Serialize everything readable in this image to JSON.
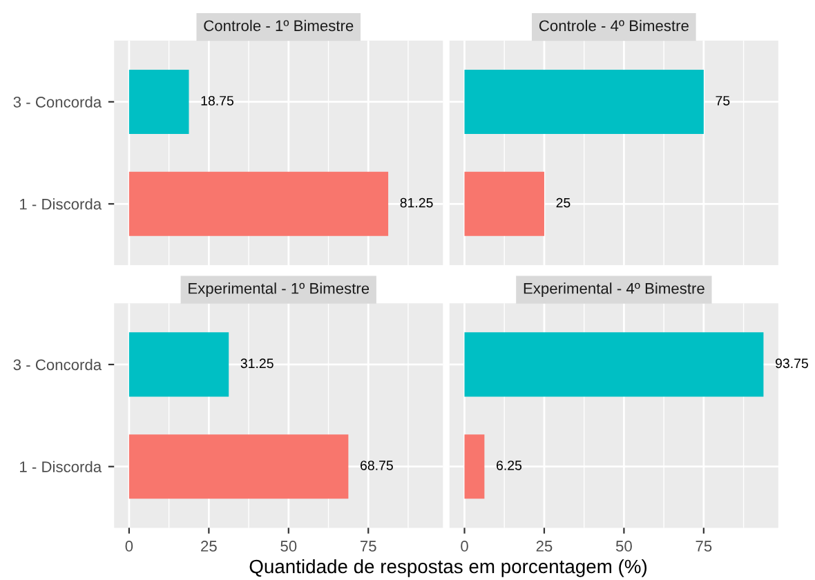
{
  "chart_data": [
    {
      "type": "bar",
      "orientation": "horizontal",
      "title": "Controle - 1º Bimestre",
      "categories": [
        "3 - Concorda",
        "1 - Discorda"
      ],
      "values": [
        18.75,
        81.25
      ],
      "colors": [
        "#00bfc4",
        "#f8766d"
      ],
      "xlim": [
        -4.7,
        98.4
      ],
      "xticks": [
        0,
        25,
        50,
        75
      ],
      "grid": true,
      "data_labels": true,
      "tick_labels": "y"
    },
    {
      "type": "bar",
      "orientation": "horizontal",
      "title": "Controle - 4º Bimestre",
      "categories": [
        null,
        null
      ],
      "values": [
        75,
        25
      ],
      "colors": [
        "#00bfc4",
        "#f8766d"
      ],
      "xlim": [
        -4.7,
        98.4
      ],
      "xticks": [
        0,
        25,
        50,
        75
      ],
      "grid": true,
      "data_labels": true,
      "tick_labels": false
    },
    {
      "type": "bar",
      "orientation": "horizontal",
      "title": "Experimental - 1º Bimestre",
      "categories": [
        "3 - Concorda",
        "1 - Discorda"
      ],
      "values": [
        31.25,
        68.75
      ],
      "colors": [
        "#00bfc4",
        "#f8766d"
      ],
      "xlim": [
        -4.7,
        98.4
      ],
      "xticks": [
        0,
        25,
        50,
        75
      ],
      "grid": true,
      "data_labels": true,
      "xlabel": "Quantidade de respostas em porcentagem (%)"
    },
    {
      "type": "bar",
      "orientation": "horizontal",
      "title": "Experimental - 4º Bimestre",
      "categories": [
        null,
        null
      ],
      "values": [
        93.75,
        6.25
      ],
      "colors": [
        "#00bfc4",
        "#f8766d"
      ],
      "xlim": [
        -4.7,
        98.4
      ],
      "xticks": [
        0,
        25,
        50,
        75
      ],
      "grid": true,
      "data_labels": true,
      "tick_labels": "x"
    }
  ]
}
